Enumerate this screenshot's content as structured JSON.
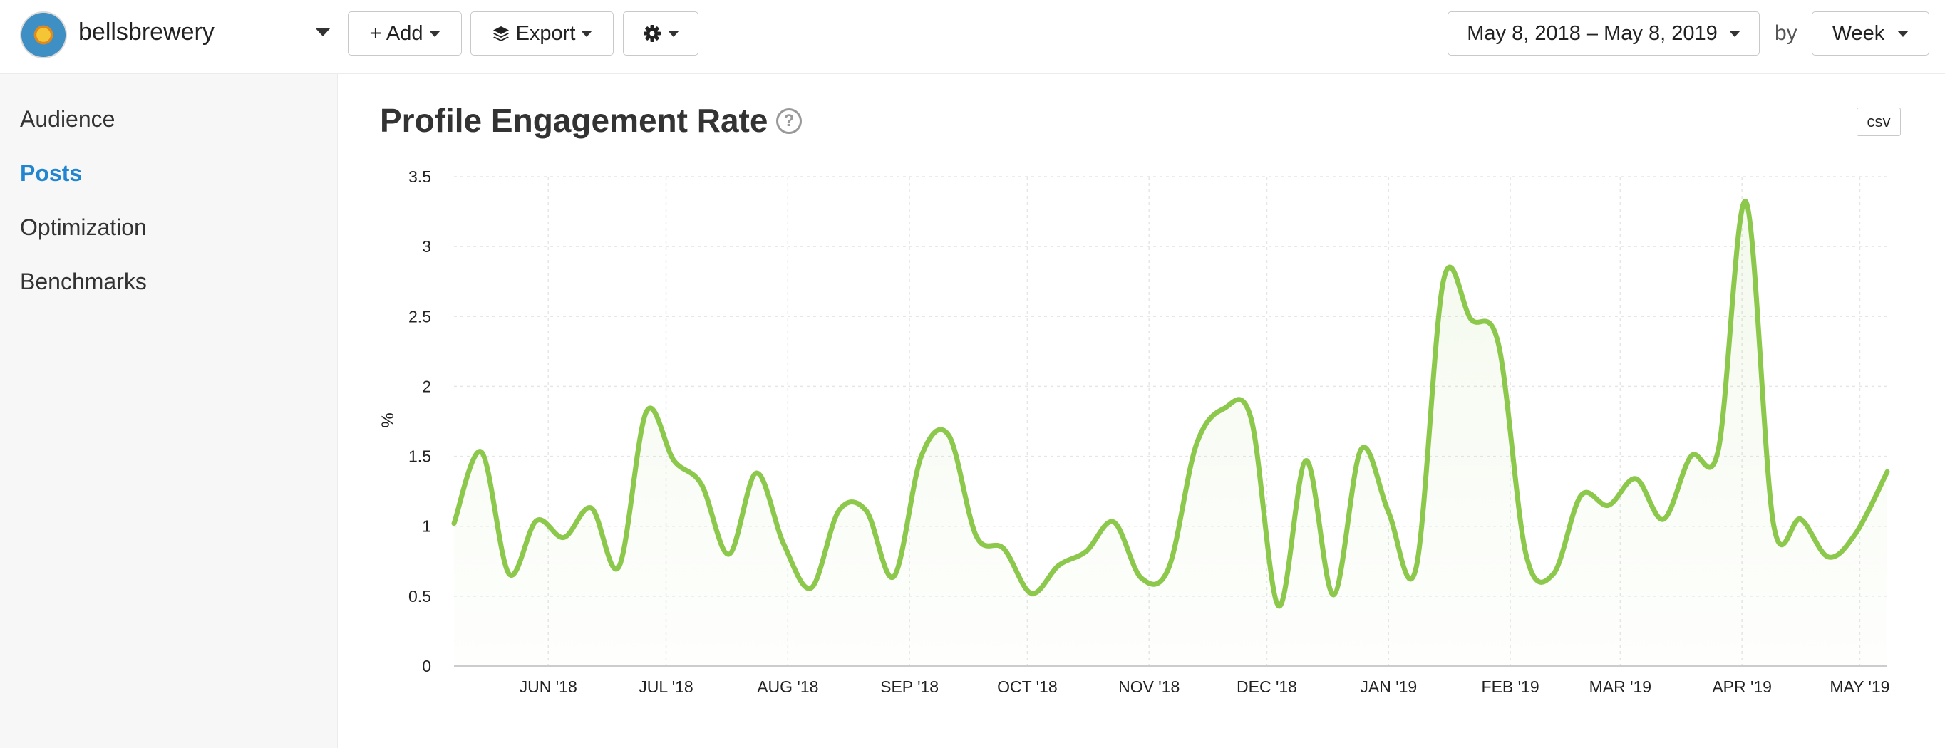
{
  "header": {
    "account_name": "bellsbrewery",
    "add_label": "+ Add",
    "export_label": "Export",
    "date_range": "May 8, 2018 – May 8, 2019",
    "by_label": "by",
    "interval": "Week"
  },
  "sidebar": {
    "items": [
      {
        "label": "Audience",
        "active": false
      },
      {
        "label": "Posts",
        "active": true
      },
      {
        "label": "Optimization",
        "active": false
      },
      {
        "label": "Benchmarks",
        "active": false
      }
    ]
  },
  "main": {
    "title": "Profile Engagement Rate",
    "help_glyph": "?",
    "csv_label": "csv"
  },
  "chart_data": {
    "type": "area",
    "ylabel": "%",
    "ylim": [
      0,
      3.5
    ],
    "yticks": [
      "0",
      "0.5",
      "1",
      "1.5",
      "2",
      "2.5",
      "3",
      "3.5"
    ],
    "xlim": [
      "2018-05-08",
      "2019-05-08"
    ],
    "xticks": [
      {
        "date": "2018-06-01",
        "label": "JUN '18"
      },
      {
        "date": "2018-07-01",
        "label": "JUL '18"
      },
      {
        "date": "2018-08-01",
        "label": "AUG '18"
      },
      {
        "date": "2018-09-01",
        "label": "SEP '18"
      },
      {
        "date": "2018-10-01",
        "label": "OCT '18"
      },
      {
        "date": "2018-11-01",
        "label": "NOV '18"
      },
      {
        "date": "2018-12-01",
        "label": "DEC '18"
      },
      {
        "date": "2019-01-01",
        "label": "JAN '19"
      },
      {
        "date": "2019-02-01",
        "label": "FEB '19"
      },
      {
        "date": "2019-03-01",
        "label": "MAR '19"
      },
      {
        "date": "2019-04-01",
        "label": "APR '19"
      },
      {
        "date": "2019-05-01",
        "label": "MAY '19"
      }
    ],
    "grid": true,
    "color": "#8cc84b",
    "points": [
      [
        "2018-05-08",
        1.02
      ],
      [
        "2018-05-15",
        1.53
      ],
      [
        "2018-05-22",
        0.66
      ],
      [
        "2018-05-29",
        1.04
      ],
      [
        "2018-06-05",
        0.92
      ],
      [
        "2018-06-12",
        1.13
      ],
      [
        "2018-06-19",
        0.71
      ],
      [
        "2018-06-26",
        1.82
      ],
      [
        "2018-07-03",
        1.47
      ],
      [
        "2018-07-10",
        1.3
      ],
      [
        "2018-07-17",
        0.8
      ],
      [
        "2018-07-24",
        1.38
      ],
      [
        "2018-07-31",
        0.87
      ],
      [
        "2018-08-07",
        0.56
      ],
      [
        "2018-08-14",
        1.11
      ],
      [
        "2018-08-21",
        1.11
      ],
      [
        "2018-08-28",
        0.64
      ],
      [
        "2018-09-04",
        1.5
      ],
      [
        "2018-09-11",
        1.65
      ],
      [
        "2018-09-18",
        0.93
      ],
      [
        "2018-09-25",
        0.84
      ],
      [
        "2018-10-02",
        0.52
      ],
      [
        "2018-10-09",
        0.72
      ],
      [
        "2018-10-16",
        0.82
      ],
      [
        "2018-10-23",
        1.03
      ],
      [
        "2018-10-30",
        0.63
      ],
      [
        "2018-11-06",
        0.7
      ],
      [
        "2018-11-13",
        1.58
      ],
      [
        "2018-11-20",
        1.84
      ],
      [
        "2018-11-27",
        1.77
      ],
      [
        "2018-12-04",
        0.43
      ],
      [
        "2018-12-11",
        1.47
      ],
      [
        "2018-12-18",
        0.51
      ],
      [
        "2018-12-25",
        1.55
      ],
      [
        "2019-01-01",
        1.1
      ],
      [
        "2019-01-08",
        0.7
      ],
      [
        "2019-01-15",
        2.76
      ],
      [
        "2019-01-22",
        2.48
      ],
      [
        "2019-01-29",
        2.3
      ],
      [
        "2019-02-05",
        0.8
      ],
      [
        "2019-02-12",
        0.66
      ],
      [
        "2019-02-19",
        1.22
      ],
      [
        "2019-02-26",
        1.15
      ],
      [
        "2019-03-05",
        1.34
      ],
      [
        "2019-03-12",
        1.05
      ],
      [
        "2019-03-19",
        1.5
      ],
      [
        "2019-03-26",
        1.55
      ],
      [
        "2019-04-02",
        3.32
      ],
      [
        "2019-04-09",
        1.02
      ],
      [
        "2019-04-16",
        1.05
      ],
      [
        "2019-04-23",
        0.78
      ],
      [
        "2019-04-30",
        0.95
      ],
      [
        "2019-05-08",
        1.39
      ]
    ]
  }
}
